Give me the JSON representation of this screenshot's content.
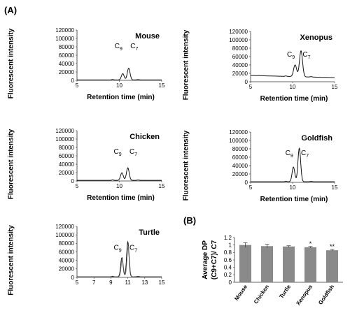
{
  "figure": {
    "label_a": "(A)",
    "label_b": "(B)"
  },
  "chart_data": [
    {
      "type": "line",
      "panel": "Mouse",
      "title": "Mouse",
      "xlabel": "Retention time (min)",
      "ylabel": "Fluorescent intensity",
      "xlim": [
        5,
        15
      ],
      "ylim": [
        0,
        120000
      ],
      "x_ticks": [
        5,
        10,
        15
      ],
      "y_ticks": [
        0,
        20000,
        40000,
        60000,
        80000,
        100000,
        120000
      ],
      "baseline": 1000,
      "peaks": [
        {
          "label": "C",
          "sub": "9",
          "x": 10.4,
          "height": 15000,
          "width": 0.16
        },
        {
          "label": "C",
          "sub": "7",
          "x": 11.1,
          "height": 28000,
          "width": 0.16
        }
      ],
      "label_y": [
        77000,
        77000
      ]
    },
    {
      "type": "line",
      "panel": "Xenopus",
      "title": "Xenopus",
      "xlabel": "Retention time (min)",
      "ylabel": "Fluorescent intensity",
      "xlim": [
        5,
        15
      ],
      "ylim": [
        0,
        120000
      ],
      "x_ticks": [
        5,
        10,
        15
      ],
      "y_ticks": [
        0,
        20000,
        40000,
        60000,
        80000,
        100000,
        120000
      ],
      "baseline": 15000,
      "peaks": [
        {
          "label": "C",
          "sub": "9",
          "x": 10.3,
          "height": 28000,
          "width": 0.18
        },
        {
          "label": "C",
          "sub": "7",
          "x": 11.0,
          "height": 62000,
          "width": 0.18
        }
      ],
      "label_y": [
        60000,
        60000
      ]
    },
    {
      "type": "line",
      "panel": "Chicken",
      "title": "Chicken",
      "xlabel": "Retention time (min)",
      "ylabel": "Fluorescent intensity",
      "xlim": [
        5,
        15
      ],
      "ylim": [
        0,
        120000
      ],
      "x_ticks": [
        5,
        10,
        15
      ],
      "y_ticks": [
        0,
        20000,
        40000,
        60000,
        80000,
        100000,
        120000
      ],
      "baseline": 1500,
      "peaks": [
        {
          "label": "C",
          "sub": "9",
          "x": 10.3,
          "height": 18000,
          "width": 0.16
        },
        {
          "label": "C",
          "sub": "7",
          "x": 11.0,
          "height": 30000,
          "width": 0.16
        }
      ],
      "label_y": [
        65000,
        65000
      ]
    },
    {
      "type": "line",
      "panel": "Goldfish",
      "title": "Goldfish",
      "xlabel": "Retention time (min)",
      "ylabel": "Fluorescent intensity",
      "xlim": [
        5,
        15
      ],
      "ylim": [
        0,
        120000
      ],
      "x_ticks": [
        5,
        10,
        15
      ],
      "y_ticks": [
        0,
        20000,
        40000,
        60000,
        80000,
        100000,
        120000
      ],
      "baseline": 1500,
      "peaks": [
        {
          "label": "C",
          "sub": "9",
          "x": 10.1,
          "height": 35000,
          "width": 0.16
        },
        {
          "label": "C",
          "sub": "7",
          "x": 10.8,
          "height": 80000,
          "width": 0.16
        }
      ],
      "label_y": [
        65000,
        65000
      ]
    },
    {
      "type": "line",
      "panel": "Turtle",
      "title": "Turtle",
      "xlabel": "",
      "ylabel": "Fluorescent intensity",
      "xlim": [
        5,
        15
      ],
      "ylim": [
        0,
        120000
      ],
      "x_ticks": [
        5,
        7,
        9,
        11,
        13,
        15
      ],
      "y_ticks": [
        0,
        20000,
        40000,
        60000,
        80000,
        100000,
        120000
      ],
      "baseline": 1500,
      "peaks": [
        {
          "label": "C",
          "sub": "9",
          "x": 10.3,
          "height": 45000,
          "width": 0.14
        },
        {
          "label": "C",
          "sub": "7",
          "x": 11.0,
          "height": 82000,
          "width": 0.14
        }
      ],
      "label_y": [
        65000,
        65000
      ]
    },
    {
      "type": "bar",
      "panel": "B",
      "title": "",
      "categories": [
        "Mouse",
        "Chicken",
        "Turtle",
        "Xenopus",
        "Goldfish"
      ],
      "values": [
        1.0,
        0.97,
        0.96,
        0.94,
        0.86
      ],
      "errors": [
        0.06,
        0.05,
        0.02,
        0.02,
        0.02
      ],
      "significance": [
        "",
        "",
        "",
        "*",
        "**"
      ],
      "ylabel_lines": [
        "Average DP",
        "(C9+C7)/ C7"
      ],
      "ylim": [
        0,
        1.2
      ],
      "y_ticks": [
        0,
        0.2,
        0.4,
        0.6,
        0.8,
        1.0,
        1.2
      ],
      "y_tick_labels": [
        "0",
        "0.2",
        "0.4",
        "0.6",
        "0.8",
        "1",
        "1.2"
      ],
      "bar_color": "#8a8a8a"
    }
  ]
}
